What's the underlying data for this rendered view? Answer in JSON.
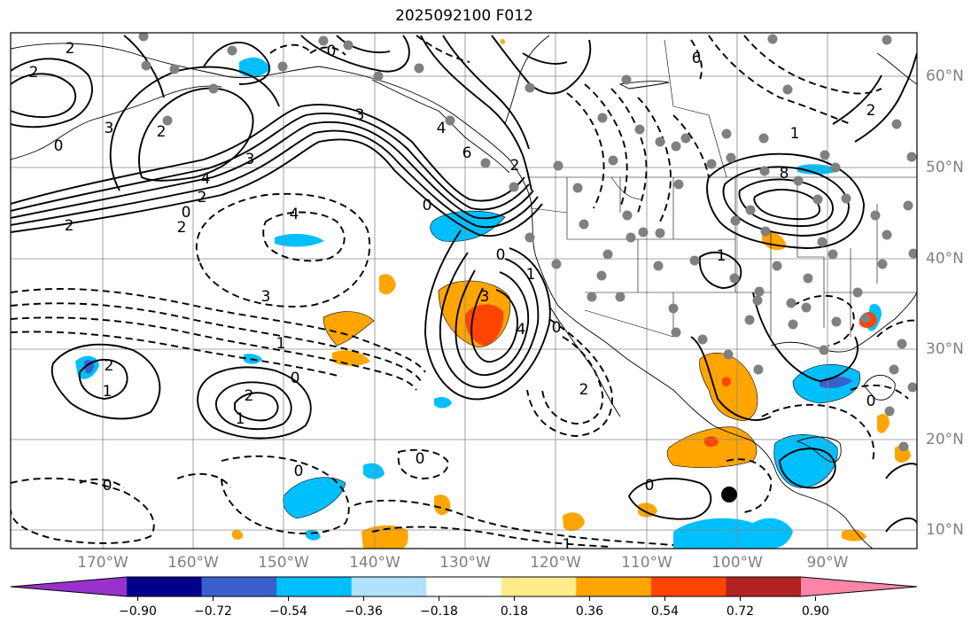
{
  "title": "2025092100 F012",
  "latitude_labels": [
    "60°N",
    "50°N",
    "40°N",
    "30°N",
    "20°N",
    "10°N"
  ],
  "longitude_labels": [
    "170°W",
    "160°W",
    "150°W",
    "140°W",
    "130°W",
    "120°W",
    "110°W",
    "100°W",
    "90°W"
  ],
  "colorbar": {
    "tick_labels": [
      "−0.90",
      "−0.72",
      "−0.54",
      "−0.36",
      "−0.18",
      "0.18",
      "0.36",
      "0.54",
      "0.72",
      "0.90"
    ],
    "colors": [
      "#9932cc",
      "#00008b",
      "#3a5fcd",
      "#00bfff",
      "#b0e2ff",
      "#ffffff",
      "#ffeb8a",
      "#ffa500",
      "#ff4500",
      "#b22222",
      "#ff85a8"
    ]
  },
  "contour_labels": [
    "2",
    "2",
    "0",
    "3",
    "0",
    "2",
    "3",
    "4",
    "3",
    "2",
    "0",
    "2",
    "2",
    "4",
    "3",
    "1",
    "0",
    "1",
    "2",
    "1",
    "2",
    "1",
    "3",
    "0",
    "4",
    "0",
    "2",
    "0",
    "0",
    "6",
    "4",
    "2",
    "0",
    "8",
    "6",
    "2",
    "1",
    "0",
    "0",
    "0",
    "1",
    "1"
  ],
  "map": {
    "domain": "northeast Pacific and North America",
    "land_boundaries": "coastlines, national and state borders",
    "filled_field_colors": [
      "#00bfff",
      "#3a5fcd",
      "#ffa500",
      "#ff4500"
    ],
    "station_marker_color": "#808080",
    "center_marker_color": "#000000"
  }
}
